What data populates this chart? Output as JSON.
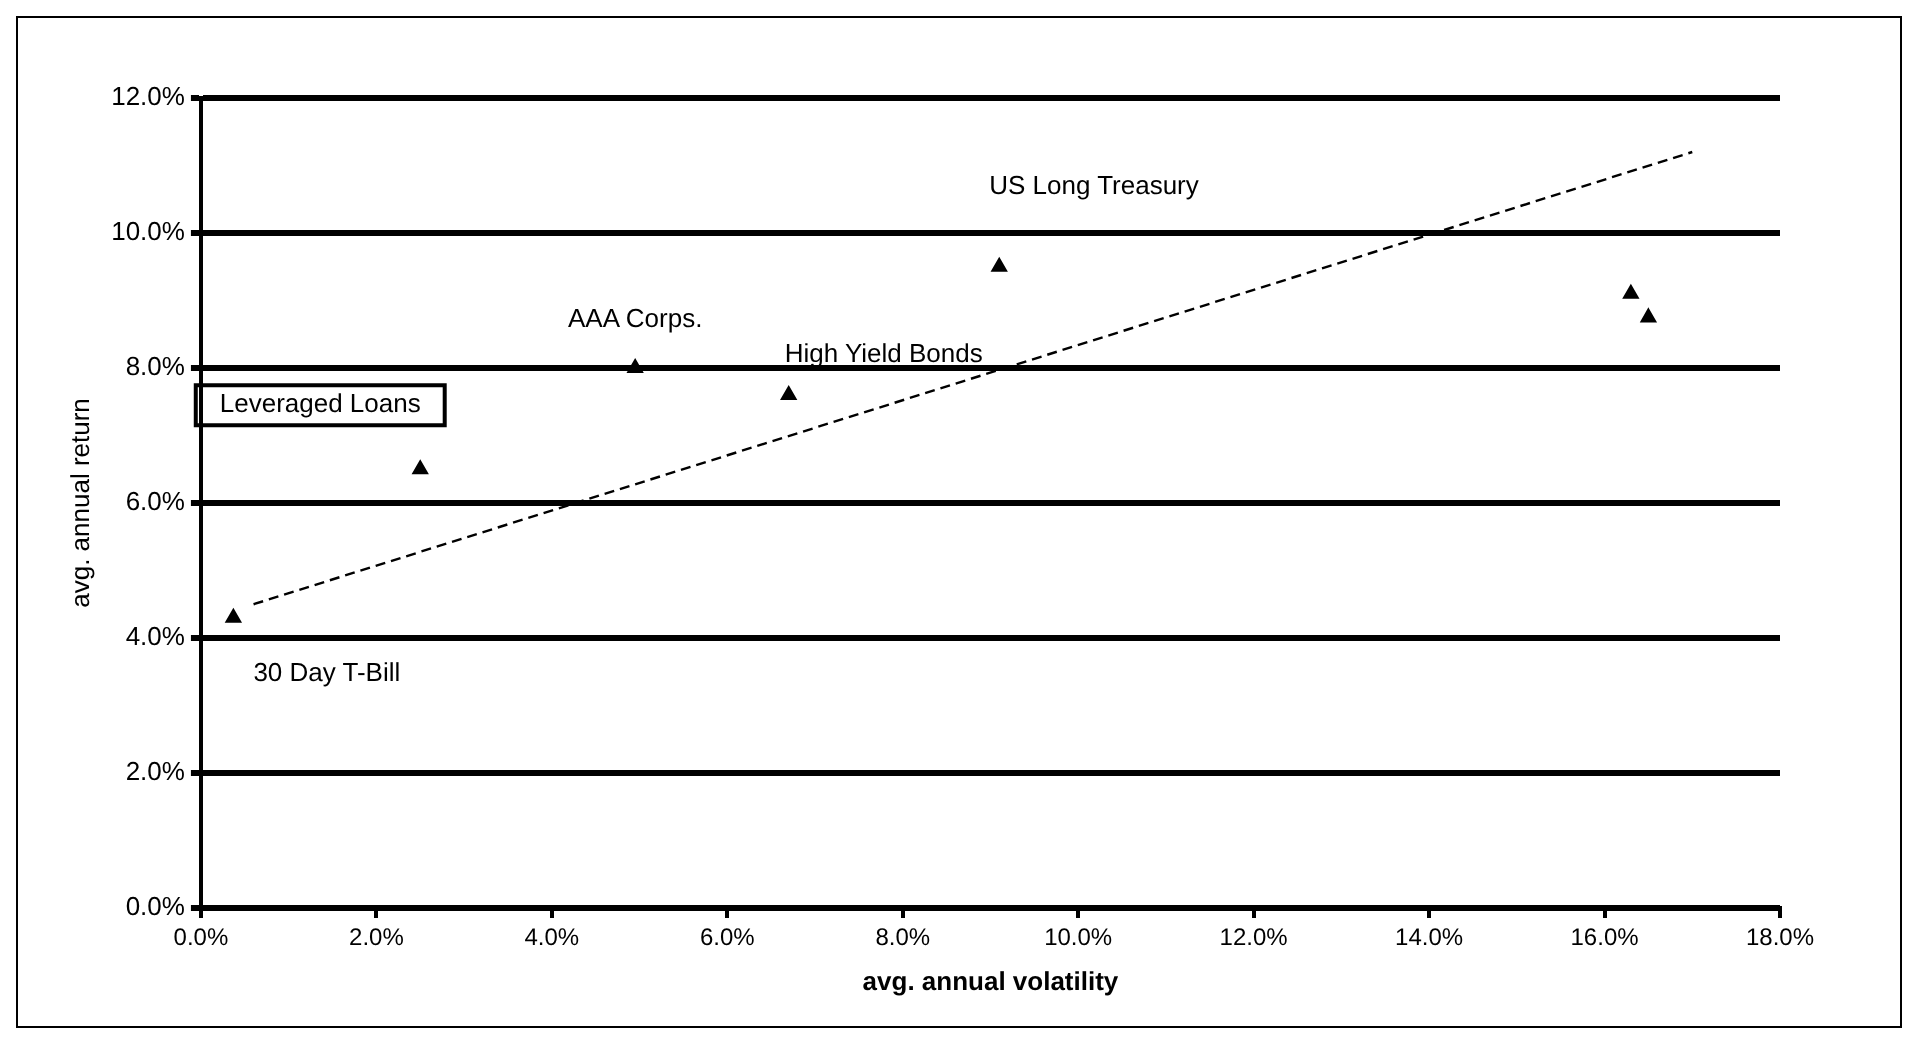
{
  "chart_data": {
    "type": "scatter",
    "xlabel": "avg. annual volatility",
    "ylabel": "avg. annual return",
    "xlim": [
      0,
      18
    ],
    "ylim": [
      0,
      12
    ],
    "xticks": [
      {
        "value": 0,
        "label": "0.0%"
      },
      {
        "value": 2,
        "label": "2.0%"
      },
      {
        "value": 4,
        "label": "4.0%"
      },
      {
        "value": 6,
        "label": "6.0%"
      },
      {
        "value": 8,
        "label": "8.0%"
      },
      {
        "value": 10,
        "label": "10.0%"
      },
      {
        "value": 12,
        "label": "12.0%"
      },
      {
        "value": 14,
        "label": "14.0%"
      },
      {
        "value": 16,
        "label": "16.0%"
      },
      {
        "value": 18,
        "label": "18.0%"
      }
    ],
    "yticks": [
      {
        "value": 0,
        "label": "0.0%"
      },
      {
        "value": 2,
        "label": "2.0%"
      },
      {
        "value": 4,
        "label": "4.0%"
      },
      {
        "value": 6,
        "label": "6.0%"
      },
      {
        "value": 8,
        "label": "8.0%"
      },
      {
        "value": 10,
        "label": "10.0%"
      },
      {
        "value": 12,
        "label": "12.0%"
      }
    ],
    "grid": "y",
    "legend": false,
    "series": [
      {
        "type": "scatter",
        "color": "#000000",
        "marker": "triangle",
        "x": [
          0.37,
          2.5,
          4.95,
          6.7,
          9.1,
          16.3,
          16.5
        ],
        "values": [
          4.3,
          6.5,
          8.0,
          7.6,
          9.5,
          9.1,
          8.75
        ]
      },
      {
        "type": "line",
        "color": "#000000",
        "marker": "none",
        "line_style": "dashed",
        "x": [
          0.6,
          17.0
        ],
        "values": [
          4.5,
          11.2
        ]
      }
    ],
    "annotations": [
      {
        "text": "30 Day T-Bill",
        "x": 0.37,
        "y": 4.3
      },
      {
        "text": "Leveraged Loans",
        "x": 2.5,
        "y": 6.5
      },
      {
        "text": "AAA Corps.",
        "x": 4.95,
        "y": 8.0
      },
      {
        "text": "High Yield Bonds",
        "x": 6.7,
        "y": 7.6
      },
      {
        "text": "US Long Treasury",
        "x": 9.1,
        "y": 9.5
      }
    ]
  }
}
